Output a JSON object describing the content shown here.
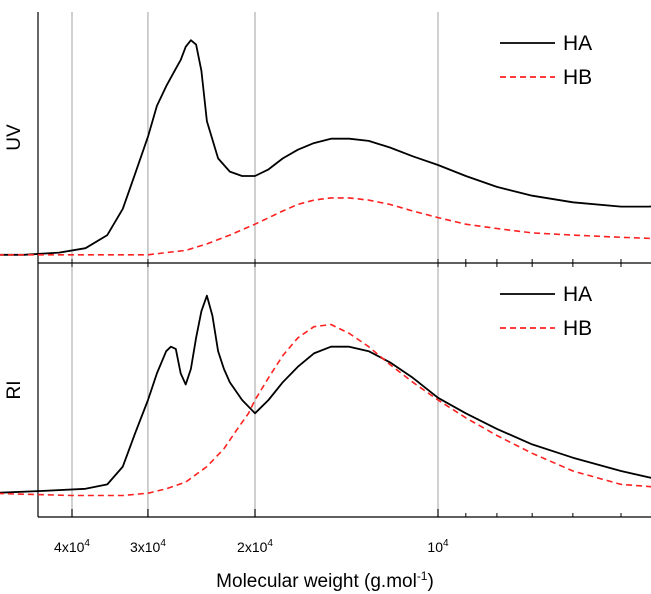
{
  "chart_data": {
    "type": "line",
    "xlabel": "Molecular weight  (g.mol",
    "xlabel_sup": "-1",
    "xlabel_end": ")",
    "x_scale": "log",
    "x_direction": "decreasing",
    "xlim": [
      55000,
      4000
    ],
    "x_ticks": [
      {
        "value": 40000,
        "base": "4x10",
        "exp": "4"
      },
      {
        "value": 30000,
        "base": "3x10",
        "exp": "4"
      },
      {
        "value": 20000,
        "base": "2x10",
        "exp": "4"
      },
      {
        "value": 10000,
        "base": "10",
        "exp": "4"
      }
    ],
    "grid": "vertical",
    "panels": [
      {
        "ylabel": "UV",
        "legend": "top-right",
        "ylim": [
          0,
          1
        ],
        "series": [
          {
            "name": "HA",
            "color": "#000000",
            "dash": "solid",
            "x": [
              55000,
              48000,
              42000,
              38000,
              35000,
              33000,
              31500,
              30000,
              29000,
              28000,
              27000,
              26500,
              26000,
              25500,
              25000,
              24500,
              24000,
              23000,
              22000,
              21000,
              20000,
              19000,
              18000,
              17000,
              16000,
              15000,
              14000,
              13000,
              12000,
              11000,
              10000,
              9000,
              8000,
              7000,
              6000,
              5000,
              4500,
              4000
            ],
            "y": [
              0.01,
              0.01,
              0.02,
              0.04,
              0.1,
              0.22,
              0.38,
              0.55,
              0.69,
              0.78,
              0.86,
              0.9,
              0.96,
              0.99,
              0.97,
              0.85,
              0.62,
              0.45,
              0.39,
              0.37,
              0.37,
              0.4,
              0.45,
              0.49,
              0.52,
              0.54,
              0.54,
              0.53,
              0.5,
              0.46,
              0.42,
              0.37,
              0.32,
              0.28,
              0.25,
              0.23,
              0.23,
              0.24
            ]
          },
          {
            "name": "HB",
            "color": "#ff2020",
            "dash": "dashed",
            "x": [
              55000,
              40000,
              33000,
              30000,
              28000,
              26000,
              24000,
              22000,
              20000,
              18000,
              17000,
              16000,
              15000,
              14000,
              13000,
              12000,
              11000,
              10000,
              9000,
              8000,
              7000,
              6000,
              5000,
              4000
            ],
            "y": [
              0.01,
              0.01,
              0.01,
              0.01,
              0.02,
              0.03,
              0.06,
              0.1,
              0.15,
              0.21,
              0.24,
              0.26,
              0.27,
              0.27,
              0.26,
              0.24,
              0.21,
              0.18,
              0.15,
              0.13,
              0.11,
              0.1,
              0.09,
              0.08
            ]
          }
        ]
      },
      {
        "ylabel": "RI",
        "legend": "top-right",
        "ylim": [
          0,
          1
        ],
        "series": [
          {
            "name": "HA",
            "color": "#000000",
            "dash": "solid",
            "x": [
              55000,
              45000,
              38000,
              35000,
              33000,
              31500,
              30000,
              29000,
              28000,
              27500,
              27000,
              26500,
              26000,
              25500,
              25000,
              24500,
              24000,
              23500,
              23000,
              22500,
              22000,
              21000,
              20000,
              19500,
              19000,
              18000,
              17000,
              16000,
              15000,
              14000,
              13000,
              12000,
              11000,
              10000,
              9000,
              8000,
              7000,
              6000,
              5000,
              4000
            ],
            "y": [
              0.08,
              0.09,
              0.1,
              0.12,
              0.2,
              0.35,
              0.5,
              0.62,
              0.72,
              0.74,
              0.73,
              0.62,
              0.57,
              0.64,
              0.78,
              0.9,
              0.97,
              0.88,
              0.72,
              0.64,
              0.58,
              0.5,
              0.44,
              0.47,
              0.5,
              0.58,
              0.65,
              0.71,
              0.74,
              0.74,
              0.72,
              0.67,
              0.6,
              0.51,
              0.44,
              0.37,
              0.3,
              0.24,
              0.18,
              0.12
            ]
          },
          {
            "name": "HB",
            "color": "#ff2020",
            "dash": "dashed",
            "x": [
              55000,
              40000,
              33000,
              30000,
              28000,
              26000,
              24000,
              22500,
              21500,
              20500,
              20000,
              19000,
              18000,
              17000,
              16000,
              15000,
              14000,
              13000,
              12000,
              11000,
              10000,
              9000,
              8000,
              7000,
              6000,
              5000,
              4000
            ],
            "y": [
              0.08,
              0.07,
              0.07,
              0.08,
              0.1,
              0.13,
              0.2,
              0.28,
              0.36,
              0.44,
              0.5,
              0.6,
              0.7,
              0.78,
              0.83,
              0.84,
              0.8,
              0.74,
              0.66,
              0.58,
              0.5,
              0.42,
              0.34,
              0.26,
              0.18,
              0.12,
              0.1
            ]
          }
        ]
      }
    ]
  }
}
